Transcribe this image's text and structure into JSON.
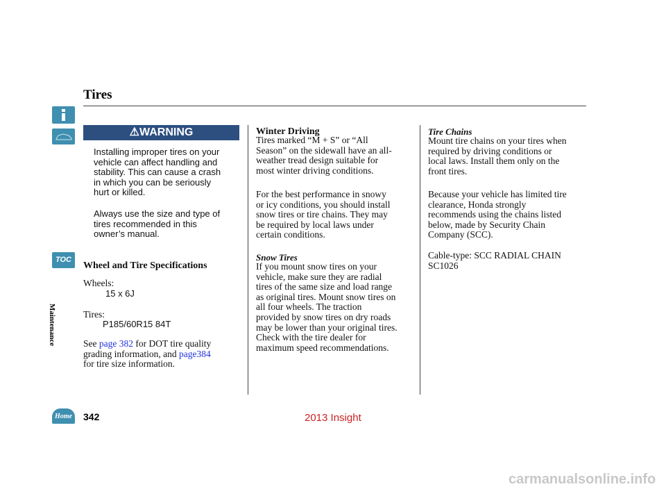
{
  "header": {
    "title": "Tires"
  },
  "sidebar": {
    "section": "Maintenance",
    "toc": "TOC",
    "home": "Home"
  },
  "warning": {
    "label": "WARNING",
    "paragraphs": [
      [
        "Installing improper tires on your",
        "vehicle can affect handling and",
        "stability. This can cause a crash",
        "in which you can be seriously",
        "hurt or killed."
      ],
      [
        "Always use the size and type of",
        "tires recommended in this",
        "owner’s manual."
      ]
    ]
  },
  "wheel_specs": {
    "heading": "Wheel and Tire Specifications",
    "wheels_label": "Wheels:",
    "wheels_value": "15 x 6J",
    "tires_label": "Tires:",
    "tires_value": "P185/60R15 84T",
    "reference": [
      [
        {
          "text": "See "
        },
        {
          "text": "page 382",
          "link": true
        },
        {
          "text": " for DOT tire quality"
        }
      ],
      [
        {
          "text": "grading information, and "
        },
        {
          "text": "page384",
          "link": true
        }
      ],
      [
        {
          "text": "for tire size information."
        }
      ]
    ]
  },
  "winter_driving": {
    "heading": "Winter Driving",
    "paragraphs": [
      [
        "Tires marked “M + S” or “All",
        "Season” on the sidewall have an all-",
        "weather tread design suitable for",
        "most winter driving conditions."
      ],
      [
        "For the best performance in snowy",
        "or icy conditions, you should install",
        "snow tires or tire chains. They may",
        "be required by local laws under",
        "certain conditions."
      ]
    ]
  },
  "snow_tires": {
    "heading": "Snow Tires",
    "paragraphs": [
      [
        "If you mount snow tires on your",
        "vehicle, make sure they are radial",
        "tires of the same size and load range",
        "as original tires. Mount snow tires on",
        "all four wheels. The traction",
        "provided by snow tires on dry roads",
        "may be lower than your original tires.",
        "Check with the tire dealer for",
        "maximum speed recommendations."
      ]
    ]
  },
  "tire_chains": {
    "heading": "Tire Chains",
    "paragraphs": [
      [
        "Mount tire chains on your tires when",
        "required by driving conditions or",
        "local laws. Install them only on the",
        "front tires."
      ],
      [
        "Because your vehicle has limited tire",
        "clearance, Honda strongly",
        "recommends using the chains listed",
        "below, made by Security Chain",
        "Company (SCC)."
      ],
      [
        "Cable-type: SCC RADIAL CHAIN",
        "SC1026"
      ]
    ]
  },
  "footer": {
    "page_number": "342",
    "model": "2013 Insight",
    "watermark": "carmanualsonline.info"
  }
}
